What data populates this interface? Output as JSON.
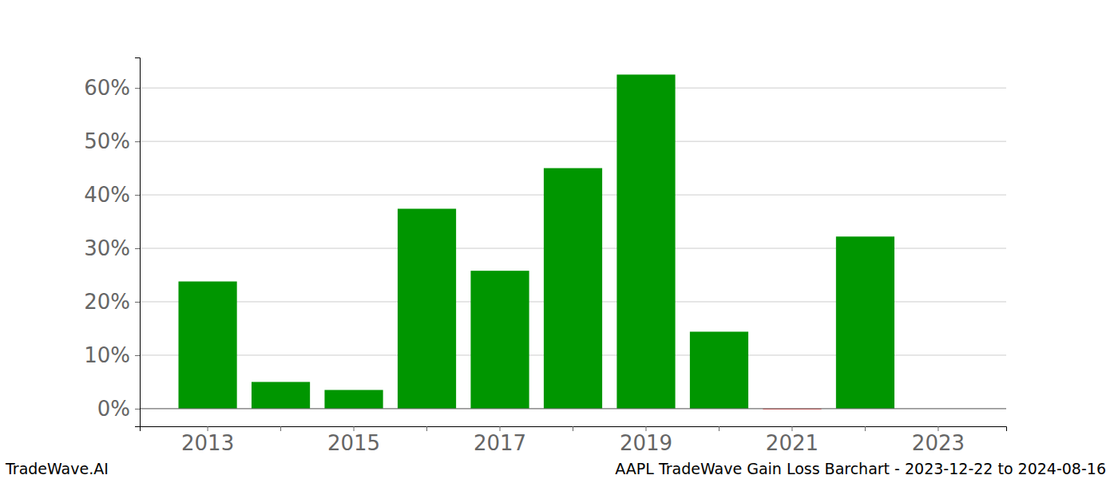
{
  "chart_data": {
    "type": "bar",
    "title": "AAPL TradeWave Gain Loss Barchart - 2023-12-22 to 2024-08-16",
    "annotations": [
      "TradeWave.AI"
    ],
    "categories": [
      "2013",
      null,
      "2015",
      null,
      "2017",
      null,
      "2019",
      null,
      "2021",
      null,
      "2023"
    ],
    "values": [
      23.8,
      5.0,
      3.5,
      37.4,
      25.8,
      45.0,
      62.5,
      14.4,
      -0.1,
      32.2,
      null
    ],
    "colors": [
      "#009600",
      "#009600",
      "#009600",
      "#009600",
      "#009600",
      "#009600",
      "#009600",
      "#009600",
      "#ff0000",
      "#009600",
      "#009600"
    ],
    "ylim": [
      -3.3,
      65.7
    ],
    "yticks": [
      {
        "value": 0,
        "label": "0%"
      },
      {
        "value": 10,
        "label": "10%"
      },
      {
        "value": 20,
        "label": "20%"
      },
      {
        "value": 30,
        "label": "30%"
      },
      {
        "value": 40,
        "label": "40%"
      },
      {
        "value": 50,
        "label": "50%"
      },
      {
        "value": 60,
        "label": "60%"
      }
    ],
    "grid": true
  }
}
